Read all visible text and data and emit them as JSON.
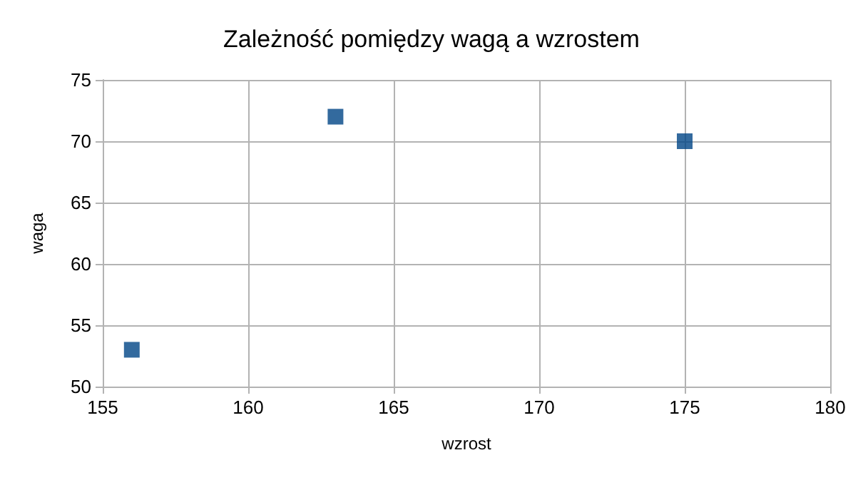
{
  "chart_data": {
    "type": "scatter",
    "title": "Zależność pomiędzy wagą a wzrostem",
    "xlabel": "wzrost",
    "ylabel": "waga",
    "x": [
      156,
      163,
      175
    ],
    "series": [
      {
        "color": "#004586",
        "values": [
          53,
          72,
          70
        ]
      }
    ],
    "xlim": [
      155,
      180
    ],
    "xticks": [
      155,
      160,
      165,
      170,
      175,
      180
    ],
    "ylim": [
      50,
      75
    ],
    "yticks": [
      50,
      55,
      60,
      65,
      70,
      75
    ],
    "grid": true,
    "marker": "square"
  }
}
